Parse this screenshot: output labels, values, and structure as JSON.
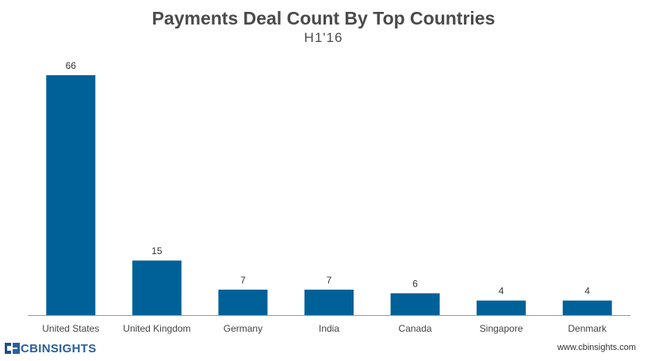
{
  "chart_data": {
    "type": "bar",
    "title": "Payments Deal Count By Top Countries",
    "subtitle": "H1'16",
    "categories": [
      "United States",
      "United Kingdom",
      "Germany",
      "India",
      "Canada",
      "Singapore",
      "Denmark"
    ],
    "values": [
      66,
      15,
      7,
      7,
      6,
      4,
      4
    ],
    "xlabel": "",
    "ylabel": "",
    "ylim": [
      0,
      66
    ],
    "grid": false,
    "bar_color": "#006199"
  },
  "branding": {
    "logo_text": "CBINSIGHTS",
    "url": "www.cbinsights.com"
  },
  "colors": {
    "title": "#4a4a4a",
    "axis": "#999999",
    "logo": "#2b5f9e"
  }
}
